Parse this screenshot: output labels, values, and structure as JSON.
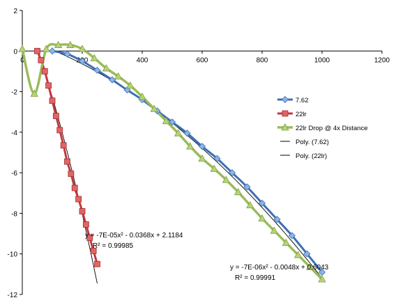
{
  "chart_data": {
    "type": "scatter",
    "title": "",
    "xlabel": "",
    "ylabel": "",
    "xlim": [
      0,
      1200
    ],
    "ylim": [
      -12,
      2
    ],
    "x_ticks": [
      0,
      200,
      400,
      600,
      800,
      1000,
      1200
    ],
    "y_ticks": [
      2,
      0,
      -2,
      -4,
      -6,
      -8,
      -10,
      -12
    ],
    "x_tick_labels": [
      "0",
      "200",
      "400",
      "600",
      "800",
      "1000",
      "1200"
    ],
    "y_tick_labels": [
      "2",
      "0",
      "-2",
      "-4",
      "-6",
      "-8",
      "-10",
      "-12"
    ],
    "grid": false,
    "legend_position": "right",
    "series": [
      {
        "name": "7.62",
        "color": "#4a7ebb",
        "marker": "diamond",
        "x": [
          100,
          150,
          200,
          250,
          300,
          350,
          400,
          450,
          500,
          550,
          600,
          650,
          700,
          750,
          800,
          850,
          900,
          950,
          1000
        ],
        "y": [
          0.0,
          -0.15,
          -0.5,
          -0.95,
          -1.42,
          -1.92,
          -2.4,
          -2.95,
          -3.5,
          -4.05,
          -4.7,
          -5.3,
          -6.0,
          -6.7,
          -7.5,
          -8.3,
          -9.1,
          -10.0,
          -10.9
        ]
      },
      {
        "name": "22lr",
        "color": "#d0343a",
        "marker": "square",
        "x": [
          50,
          62.5,
          75,
          87.5,
          100,
          112.5,
          125,
          137.5,
          150,
          162.5,
          175,
          187.5,
          200,
          212.5,
          225,
          237.5,
          250
        ],
        "y": [
          0.0,
          -0.45,
          -1.0,
          -1.7,
          -2.45,
          -3.2,
          -3.9,
          -4.65,
          -5.45,
          -6.05,
          -6.75,
          -7.3,
          -7.9,
          -8.55,
          -9.2,
          -9.85,
          -10.5
        ]
      },
      {
        "name": "22lr Drop @ 4x Distance",
        "color": "#9bbb59",
        "marker": "triangle",
        "x": [
          0,
          40,
          80,
          120,
          160,
          200,
          240,
          280,
          320,
          360,
          400,
          440,
          480,
          520,
          560,
          600,
          640,
          680,
          720,
          760,
          800,
          840,
          880,
          920,
          960,
          1000
        ],
        "y": [
          0.1,
          -2.1,
          0.1,
          0.3,
          0.3,
          0.1,
          -0.35,
          -0.85,
          -1.25,
          -1.7,
          -2.25,
          -2.85,
          -3.45,
          -4.05,
          -4.7,
          -5.3,
          -5.8,
          -6.35,
          -6.95,
          -7.6,
          -8.25,
          -8.85,
          -9.45,
          -10.05,
          -10.65,
          -11.25
        ]
      },
      {
        "name": "Poly. (7.62)",
        "color": "#000000",
        "trendline": true,
        "equation": "y = -7E-06x² - 0.0048x + 0.6043",
        "r_squared": "R² = 0.99991"
      },
      {
        "name": "Poly. (22lr)",
        "color": "#000000",
        "trendline": true,
        "equation": "y = -7E-05x² - 0.0368x + 2.1184",
        "r_squared": "R² = 0.99985"
      }
    ]
  }
}
